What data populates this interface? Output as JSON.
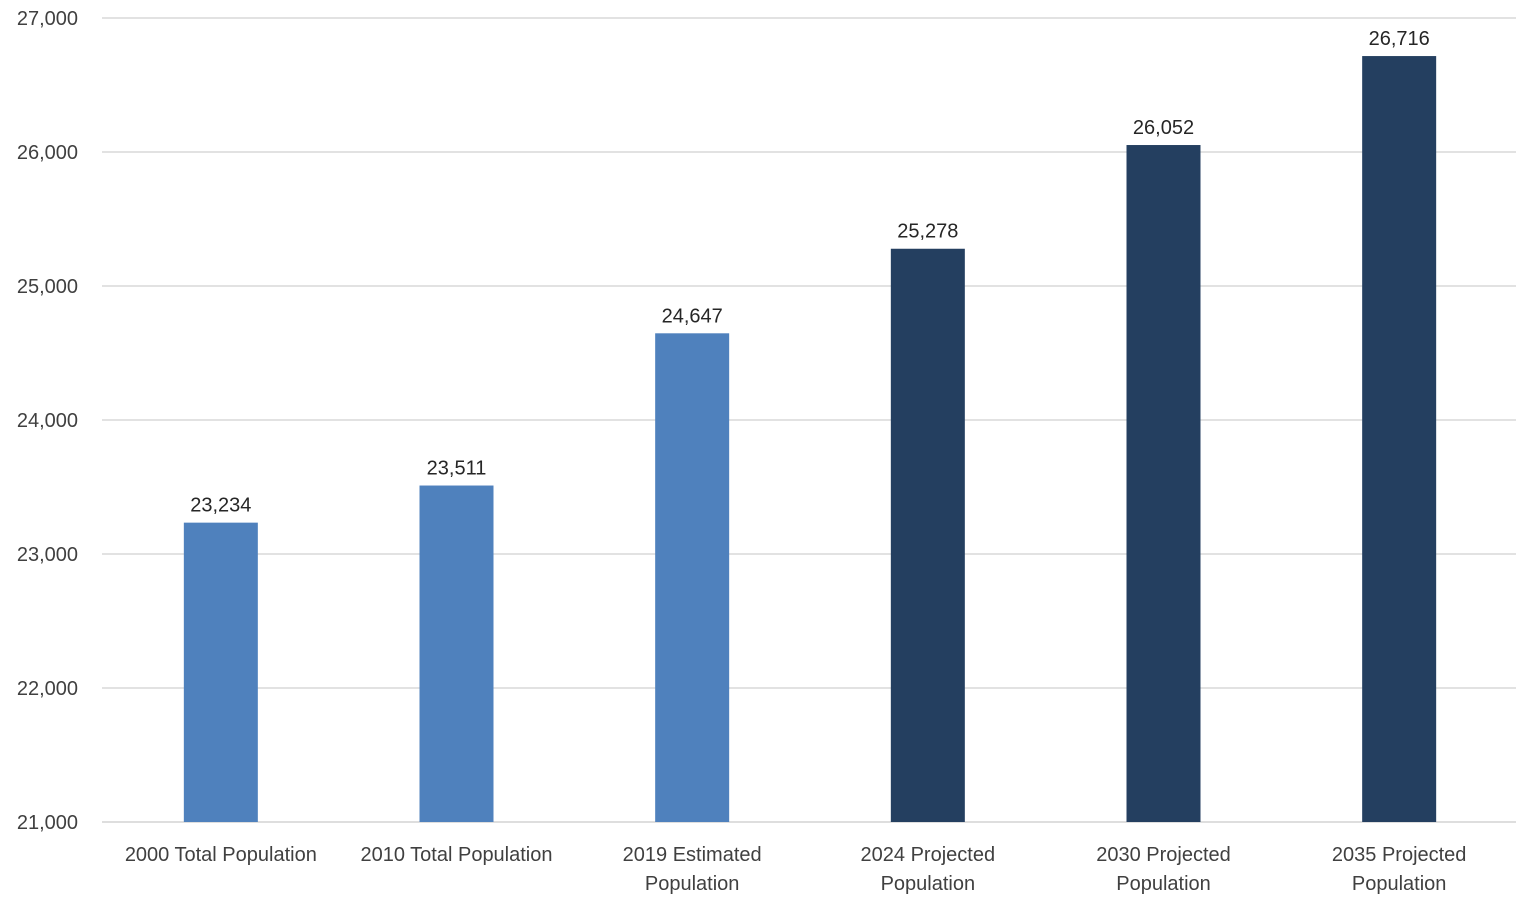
{
  "chart_data": {
    "type": "bar",
    "title": "",
    "xlabel": "",
    "ylabel": "",
    "ylim": [
      21000,
      27000
    ],
    "yticks": [
      21000,
      22000,
      23000,
      24000,
      25000,
      26000,
      27000
    ],
    "ytick_labels": [
      "21,000",
      "22,000",
      "23,000",
      "24,000",
      "25,000",
      "26,000",
      "27,000"
    ],
    "grid": true,
    "legend": "none",
    "categories": [
      [
        "2000 Total Population"
      ],
      [
        "2010 Total Population"
      ],
      [
        "2019 Estimated",
        "Population"
      ],
      [
        "2024 Projected",
        "Population"
      ],
      [
        "2030 Projected",
        "Population"
      ],
      [
        "2035 Projected",
        "Population"
      ]
    ],
    "values": [
      23234,
      23511,
      24647,
      25278,
      26052,
      26716
    ],
    "value_labels": [
      "23,234",
      "23,511",
      "24,647",
      "25,278",
      "26,052",
      "26,716"
    ],
    "bar_colors": [
      "#4F81BD",
      "#4F81BD",
      "#4F81BD",
      "#243F60",
      "#243F60",
      "#243F60"
    ]
  },
  "colors": {
    "historic": "#4F81BD",
    "projected": "#243F60",
    "gridline": "#D9D9D9",
    "axis_text": "#404040",
    "label_text": "#262626"
  }
}
